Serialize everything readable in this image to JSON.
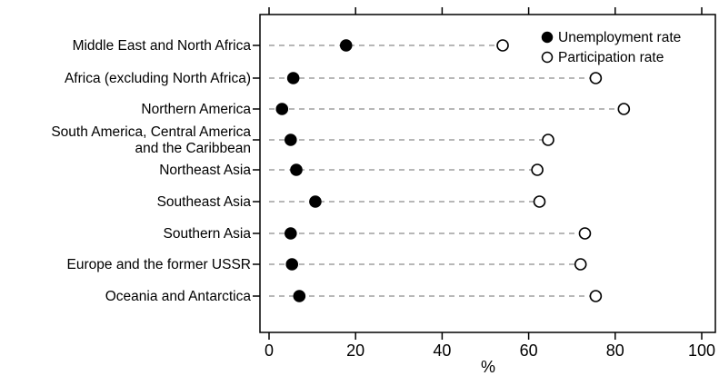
{
  "chart_data": {
    "type": "scatter",
    "categories": [
      "Middle East and North Africa",
      "Africa (excluding North Africa)",
      "Northern America",
      "South America, Central America and the Caribbean",
      "Northeast Asia",
      "Southeast Asia",
      "Southern Asia",
      "Europe and the former USSR",
      "Oceania and Antarctica"
    ],
    "category_lines": [
      [
        "Middle East and North Africa"
      ],
      [
        "Africa (excluding North Africa)"
      ],
      [
        "Northern America"
      ],
      [
        "South America, Central America",
        "and the Caribbean"
      ],
      [
        "Northeast Asia"
      ],
      [
        "Southeast Asia"
      ],
      [
        "Southern Asia"
      ],
      [
        "Europe and the former USSR"
      ],
      [
        "Oceania and Antarctica"
      ]
    ],
    "series": [
      {
        "name": "Unemployment rate",
        "marker": "filled-circle",
        "values": [
          17.8,
          5.6,
          3.0,
          5.0,
          6.3,
          10.7,
          5.0,
          5.3,
          7.0
        ]
      },
      {
        "name": "Participation rate",
        "marker": "open-circle",
        "values": [
          54.0,
          75.5,
          82.0,
          64.5,
          62.0,
          62.5,
          73.0,
          72.0,
          75.5
        ]
      }
    ],
    "xlabel": "%",
    "ylabel": "",
    "xlim": [
      -2,
      100
    ],
    "xticks": [
      "0",
      "20",
      "40",
      "60",
      "80",
      "100"
    ],
    "xtick_values": [
      0,
      20,
      40,
      60,
      80,
      100
    ],
    "grid": false,
    "connector_style": "dashed grey line from 0 to participation rate",
    "legend_position": "top-right",
    "colors": {
      "filled": "#000000",
      "connector": "#8c8c8c",
      "axis": "#000000"
    }
  }
}
